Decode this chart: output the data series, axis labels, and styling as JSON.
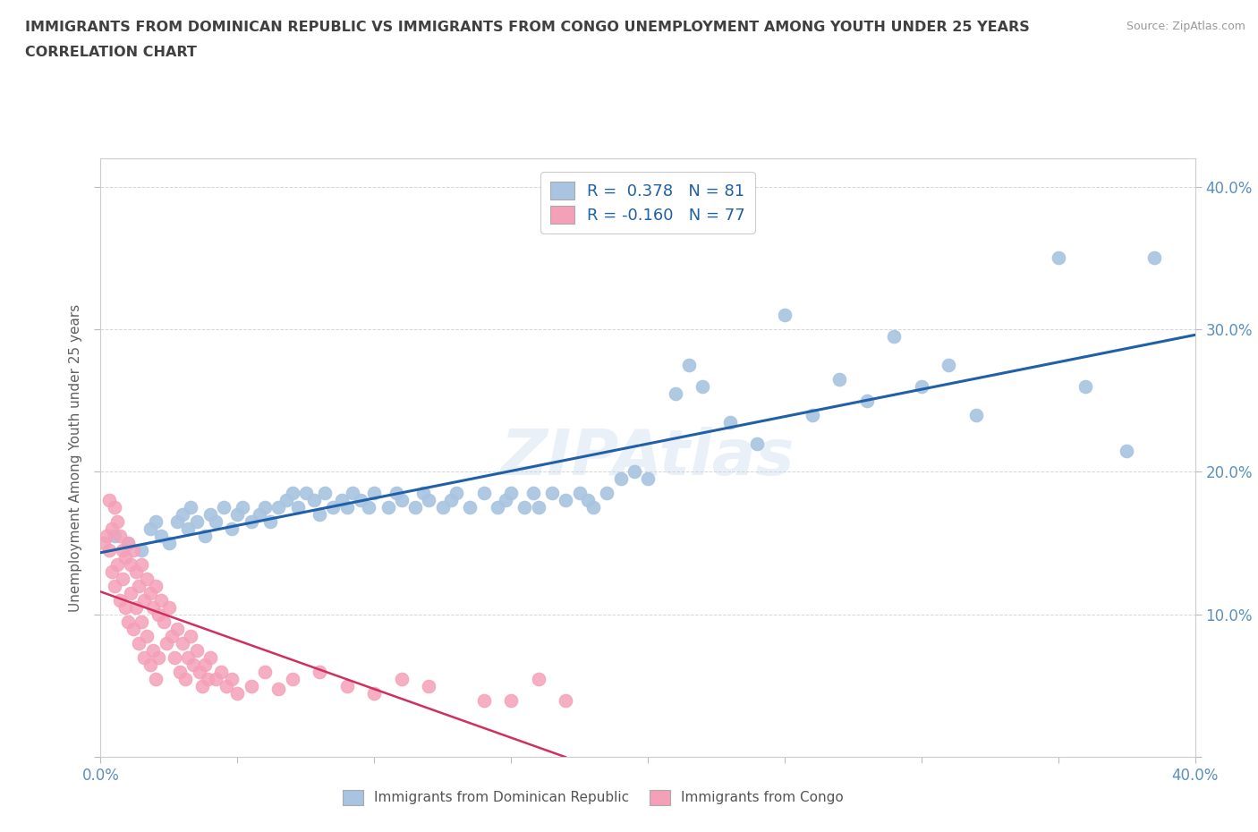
{
  "title_line1": "IMMIGRANTS FROM DOMINICAN REPUBLIC VS IMMIGRANTS FROM CONGO UNEMPLOYMENT AMONG YOUTH UNDER 25 YEARS",
  "title_line2": "CORRELATION CHART",
  "source_text": "Source: ZipAtlas.com",
  "ylabel": "Unemployment Among Youth under 25 years",
  "xlim": [
    0.0,
    0.4
  ],
  "ylim": [
    0.0,
    0.42
  ],
  "x_ticks": [
    0.0,
    0.05,
    0.1,
    0.15,
    0.2,
    0.25,
    0.3,
    0.35,
    0.4
  ],
  "y_ticks": [
    0.0,
    0.1,
    0.2,
    0.3,
    0.4
  ],
  "color_dr": "#a8c4e0",
  "color_congo": "#f4a0b8",
  "line_color_dr": "#2060a8",
  "line_color_congo": "#d03060",
  "R_dr": 0.378,
  "N_dr": 81,
  "R_congo": -0.16,
  "N_congo": 77,
  "watermark": "ZIPAtlas",
  "dr_x": [
    0.005,
    0.01,
    0.015,
    0.018,
    0.02,
    0.022,
    0.025,
    0.028,
    0.03,
    0.032,
    0.033,
    0.035,
    0.038,
    0.04,
    0.042,
    0.045,
    0.048,
    0.05,
    0.052,
    0.055,
    0.058,
    0.06,
    0.062,
    0.065,
    0.068,
    0.07,
    0.072,
    0.075,
    0.078,
    0.08,
    0.082,
    0.085,
    0.088,
    0.09,
    0.092,
    0.095,
    0.098,
    0.1,
    0.105,
    0.108,
    0.11,
    0.115,
    0.118,
    0.12,
    0.125,
    0.128,
    0.13,
    0.135,
    0.14,
    0.145,
    0.148,
    0.15,
    0.155,
    0.158,
    0.16,
    0.165,
    0.17,
    0.175,
    0.178,
    0.18,
    0.185,
    0.19,
    0.195,
    0.2,
    0.21,
    0.215,
    0.22,
    0.23,
    0.24,
    0.25,
    0.26,
    0.27,
    0.28,
    0.29,
    0.3,
    0.31,
    0.32,
    0.35,
    0.36,
    0.375,
    0.385
  ],
  "dr_y": [
    0.155,
    0.15,
    0.145,
    0.16,
    0.165,
    0.155,
    0.15,
    0.165,
    0.17,
    0.16,
    0.175,
    0.165,
    0.155,
    0.17,
    0.165,
    0.175,
    0.16,
    0.17,
    0.175,
    0.165,
    0.17,
    0.175,
    0.165,
    0.175,
    0.18,
    0.185,
    0.175,
    0.185,
    0.18,
    0.17,
    0.185,
    0.175,
    0.18,
    0.175,
    0.185,
    0.18,
    0.175,
    0.185,
    0.175,
    0.185,
    0.18,
    0.175,
    0.185,
    0.18,
    0.175,
    0.18,
    0.185,
    0.175,
    0.185,
    0.175,
    0.18,
    0.185,
    0.175,
    0.185,
    0.175,
    0.185,
    0.18,
    0.185,
    0.18,
    0.175,
    0.185,
    0.195,
    0.2,
    0.195,
    0.255,
    0.275,
    0.26,
    0.235,
    0.22,
    0.31,
    0.24,
    0.265,
    0.25,
    0.295,
    0.26,
    0.275,
    0.24,
    0.35,
    0.26,
    0.215,
    0.35
  ],
  "congo_x": [
    0.001,
    0.002,
    0.003,
    0.003,
    0.004,
    0.004,
    0.005,
    0.005,
    0.006,
    0.006,
    0.007,
    0.007,
    0.008,
    0.008,
    0.009,
    0.009,
    0.01,
    0.01,
    0.011,
    0.011,
    0.012,
    0.012,
    0.013,
    0.013,
    0.014,
    0.014,
    0.015,
    0.015,
    0.016,
    0.016,
    0.017,
    0.017,
    0.018,
    0.018,
    0.019,
    0.019,
    0.02,
    0.02,
    0.021,
    0.021,
    0.022,
    0.023,
    0.024,
    0.025,
    0.026,
    0.027,
    0.028,
    0.029,
    0.03,
    0.031,
    0.032,
    0.033,
    0.034,
    0.035,
    0.036,
    0.037,
    0.038,
    0.039,
    0.04,
    0.042,
    0.044,
    0.046,
    0.048,
    0.05,
    0.055,
    0.06,
    0.065,
    0.07,
    0.08,
    0.09,
    0.1,
    0.11,
    0.12,
    0.14,
    0.15,
    0.16,
    0.17
  ],
  "congo_y": [
    0.15,
    0.155,
    0.18,
    0.145,
    0.16,
    0.13,
    0.175,
    0.12,
    0.165,
    0.135,
    0.155,
    0.11,
    0.145,
    0.125,
    0.14,
    0.105,
    0.15,
    0.095,
    0.135,
    0.115,
    0.145,
    0.09,
    0.13,
    0.105,
    0.12,
    0.08,
    0.135,
    0.095,
    0.11,
    0.07,
    0.125,
    0.085,
    0.115,
    0.065,
    0.105,
    0.075,
    0.12,
    0.055,
    0.1,
    0.07,
    0.11,
    0.095,
    0.08,
    0.105,
    0.085,
    0.07,
    0.09,
    0.06,
    0.08,
    0.055,
    0.07,
    0.085,
    0.065,
    0.075,
    0.06,
    0.05,
    0.065,
    0.055,
    0.07,
    0.055,
    0.06,
    0.05,
    0.055,
    0.045,
    0.05,
    0.06,
    0.048,
    0.055,
    0.06,
    0.05,
    0.045,
    0.055,
    0.05,
    0.04,
    0.04,
    0.055,
    0.04
  ],
  "background_color": "#ffffff",
  "grid_color": "#cccccc",
  "title_color": "#404040",
  "axis_label_color": "#606060",
  "tick_label_color": "#5a8fc0"
}
